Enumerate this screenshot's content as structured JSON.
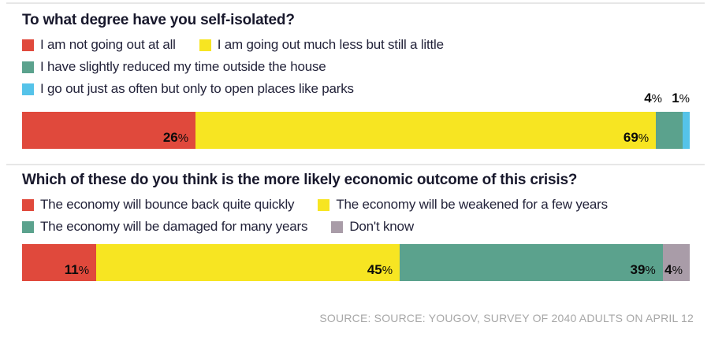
{
  "palette": {
    "red": "#e0493c",
    "yellow": "#f7e522",
    "teal": "#5ba28d",
    "blue": "#55c3e9",
    "gray": "#a99ca8",
    "divider": "#e7e7e7",
    "title_text": "#18182c",
    "legend_text": "#23233a",
    "bar_label_text": "#0b0b0b",
    "source_text": "#a7a7a7"
  },
  "chart1": {
    "title": "To what degree have you self-isolated?",
    "legend_rows": [
      [
        {
          "label": "I am not going out at all",
          "color": "red"
        },
        {
          "label": "I am going out much less but still a little",
          "color": "yellow"
        }
      ],
      [
        {
          "label": "I have slightly reduced my time outside the house",
          "color": "teal"
        }
      ],
      [
        {
          "label": "I go out just as often but only to open places like parks",
          "color": "blue"
        }
      ]
    ],
    "segments": [
      {
        "value": 26,
        "display": "26%",
        "color": "red",
        "label": "inside"
      },
      {
        "value": 69,
        "display": "69%",
        "color": "yellow",
        "label": "inside"
      },
      {
        "value": 4,
        "display": "4%",
        "color": "teal",
        "label": "above",
        "above_right": 35
      },
      {
        "value": 1,
        "display": "1%",
        "color": "blue",
        "label": "above",
        "above_right": 0
      }
    ]
  },
  "chart2": {
    "title": "Which of these do you think is the more likely economic outcome of this crisis?",
    "legend_rows": [
      [
        {
          "label": "The economy will bounce back quite quickly",
          "color": "red"
        },
        {
          "label": "The economy will be weakened for a few years",
          "color": "yellow"
        }
      ],
      [
        {
          "label": "The economy will be damaged for many years",
          "color": "teal"
        },
        {
          "label": "Don't know",
          "color": "gray"
        }
      ]
    ],
    "segments": [
      {
        "value": 11,
        "display": "11%",
        "color": "red",
        "label": "inside"
      },
      {
        "value": 45,
        "display": "45%",
        "color": "yellow",
        "label": "inside"
      },
      {
        "value": 39,
        "display": "39%",
        "color": "teal",
        "label": "inside"
      },
      {
        "value": 4,
        "display": "4%",
        "color": "gray",
        "label": "inside"
      }
    ]
  },
  "source": "SOURCE: SOURCE: YOUGOV, SURVEY OF 2040 ADULTS ON APRIL 12",
  "chart_data": [
    {
      "type": "bar",
      "subtype": "horizontal-stacked",
      "title": "To what degree have you self-isolated?",
      "categories": [
        "I am not going out at all",
        "I am going out much less but still a little",
        "I have slightly reduced my time outside the house",
        "I go out just as often but only to open places like parks"
      ],
      "values": [
        26,
        69,
        4,
        1
      ],
      "unit": "%",
      "colors": [
        "#e0493c",
        "#f7e522",
        "#5ba28d",
        "#55c3e9"
      ],
      "legend_position": "top",
      "data_labels": "inside-end; small segments labeled above bar"
    },
    {
      "type": "bar",
      "subtype": "horizontal-stacked",
      "title": "Which of these do you think is the more likely economic outcome of this crisis?",
      "categories": [
        "The economy will bounce back quite quickly",
        "The economy will be weakened for a few years",
        "The economy will be damaged for many years",
        "Don't know"
      ],
      "values": [
        11,
        45,
        39,
        4
      ],
      "unit": "%",
      "colors": [
        "#e0493c",
        "#f7e522",
        "#5ba28d",
        "#a99ca8"
      ],
      "legend_position": "top",
      "data_labels": "inside-end"
    }
  ]
}
